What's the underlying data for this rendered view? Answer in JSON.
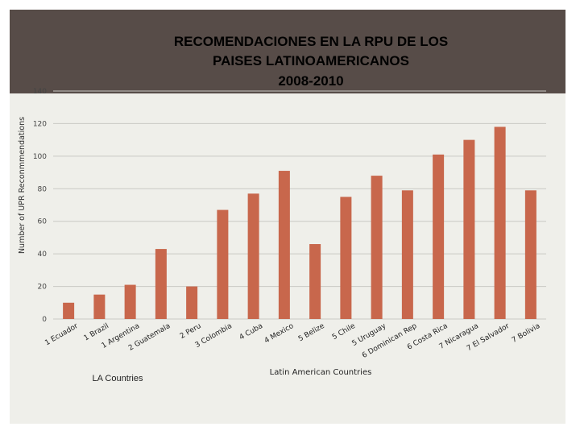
{
  "chart_data": {
    "type": "bar",
    "title_lines": [
      "RECOMENDACIONES EN LA RPU DE LOS",
      "PAISES  LATINOAMERICANOS",
      "2008-2010"
    ],
    "ylabel": "Number of UPR Reconmmendations",
    "xlabel": "Latin American Countries",
    "caption": "LA Countries",
    "ylim": [
      0,
      140
    ],
    "yticks": [
      0,
      20,
      40,
      60,
      80,
      100,
      120,
      140
    ],
    "grid": true,
    "legend": "none",
    "colors": {
      "bar": "#c8674c",
      "header": "#574c48",
      "panel": "#efefea"
    },
    "categories": [
      "1 Ecuador",
      "1 Brazil",
      "1 Argentina",
      "2 Guatemala",
      "2 Peru",
      "3 Colombia",
      "4 Cuba",
      "4 Mexico",
      "5 Belize",
      "5 Chile",
      "5 Uruguay",
      "6 Dominican Rep",
      "6 Costa Rica",
      "7 Nicaragua",
      "7 El Salvador",
      "7 Bolivia"
    ],
    "values": [
      10,
      15,
      21,
      43,
      20,
      67,
      77,
      91,
      46,
      75,
      88,
      79,
      101,
      110,
      118,
      79
    ]
  }
}
